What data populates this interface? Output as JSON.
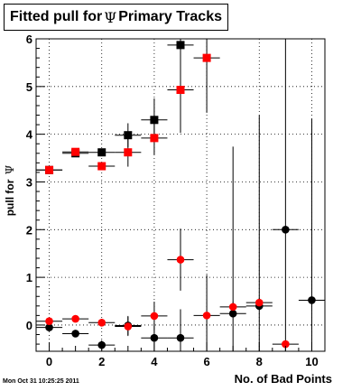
{
  "title": {
    "prefix": "Fitted pull for",
    "symbol": "Ψ",
    "suffix": "Primary Tracks"
  },
  "timestamp": "Mon Oct 31 10:25:25 2011",
  "colors": {
    "black_series": "#000000",
    "red_series": "#ff0000",
    "grid": "#000000"
  },
  "chart_data": {
    "type": "scatter",
    "title": "Fitted pull for Ψ  Primary Tracks",
    "xlabel": "No. of Bad Points",
    "ylabel_prefix": "pull for",
    "ylabel_symbol": "Ψ",
    "xlim": [
      -0.5,
      10.5
    ],
    "ylim": [
      -0.55,
      6.0
    ],
    "x_ticks": [
      0,
      2,
      4,
      6,
      8,
      10
    ],
    "y_ticks": [
      0,
      1,
      2,
      3,
      4,
      5,
      6
    ],
    "grid": true,
    "series": [
      {
        "marker": "square",
        "color": "#000000",
        "points": [
          {
            "x": 0,
            "y": 3.25,
            "yerr": 0.03
          },
          {
            "x": 1,
            "y": 3.6,
            "yerr": 0.05
          },
          {
            "x": 2,
            "y": 3.62,
            "yerr": 0.07
          },
          {
            "x": 3,
            "y": 3.98,
            "yerr": 0.25
          },
          {
            "x": 4,
            "y": 4.3,
            "yerr": 0.45
          },
          {
            "x": 5,
            "y": 5.87,
            "yerr": 0.9
          }
        ]
      },
      {
        "marker": "square",
        "color": "#ff0000",
        "points": [
          {
            "x": 0,
            "y": 3.25,
            "yerr": 0.03
          },
          {
            "x": 1,
            "y": 3.63,
            "yerr": 0.05
          },
          {
            "x": 2,
            "y": 3.33,
            "yerr": 0.08
          },
          {
            "x": 3,
            "y": 3.62,
            "yerr": 0.3
          },
          {
            "x": 4,
            "y": 3.92,
            "yerr": 0.35
          },
          {
            "x": 5,
            "y": 4.93,
            "yerr": 0.9
          },
          {
            "x": 6,
            "y": 5.6,
            "yerr": 1.15
          }
        ]
      },
      {
        "marker": "circle",
        "color": "#000000",
        "points": [
          {
            "x": 0,
            "y": -0.05,
            "yerr": 0.03
          },
          {
            "x": 1,
            "y": -0.18,
            "yerr": 0.05
          },
          {
            "x": 2,
            "y": -0.42,
            "yerr": 0.1
          },
          {
            "x": 3,
            "y": -0.01,
            "yerr": 0.2
          },
          {
            "x": 4,
            "y": -0.27,
            "yerr": 0.3
          },
          {
            "x": 5,
            "y": -0.27,
            "yerr": 0.6
          },
          {
            "x": 7,
            "y": 0.24,
            "yerr": 3.5
          },
          {
            "x": 8,
            "y": 0.4,
            "yerr": 4.0
          },
          {
            "x": 9,
            "y": 2.0,
            "yerr": 5.5
          },
          {
            "x": 10,
            "y": 0.52,
            "yerr": 3.8
          }
        ]
      },
      {
        "marker": "circle",
        "color": "#ff0000",
        "points": [
          {
            "x": 0,
            "y": 0.08,
            "yerr": 0.03
          },
          {
            "x": 1,
            "y": 0.13,
            "yerr": 0.05
          },
          {
            "x": 2,
            "y": 0.05,
            "yerr": 0.08
          },
          {
            "x": 3,
            "y": -0.03,
            "yerr": 0.2
          },
          {
            "x": 4,
            "y": 0.19,
            "yerr": 0.3
          },
          {
            "x": 5,
            "y": 1.37,
            "yerr": 0.65
          },
          {
            "x": 6,
            "y": 0.2,
            "yerr": 0.85
          },
          {
            "x": 7,
            "y": 0.38,
            "yerr": 0.1
          },
          {
            "x": 8,
            "y": 0.47,
            "yerr": 0.1
          },
          {
            "x": 9,
            "y": -0.4,
            "yerr": 0.05
          }
        ]
      }
    ]
  }
}
